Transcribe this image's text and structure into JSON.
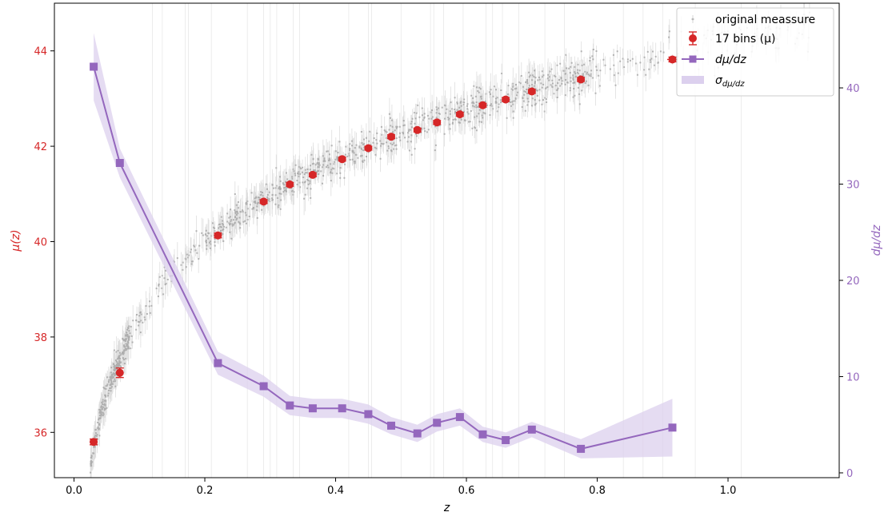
{
  "chart_data": {
    "type": "scatter",
    "title": "",
    "xlabel": "z",
    "ylabel_left": "μ(z)",
    "ylabel_right": "dμ/dz",
    "xlim": [
      -0.03,
      1.17
    ],
    "ylim_left": [
      35.05,
      45.0
    ],
    "ylim_right": [
      -0.5,
      48.8
    ],
    "x_ticks": [
      0.0,
      0.2,
      0.4,
      0.6,
      0.8,
      1.0
    ],
    "x_tick_labels": [
      "0.0",
      "0.2",
      "0.4",
      "0.6",
      "0.8",
      "1.0"
    ],
    "y_left_ticks": [
      36,
      38,
      40,
      42,
      44
    ],
    "y_left_tick_labels": [
      "36",
      "38",
      "40",
      "42",
      "44"
    ],
    "y_right_ticks": [
      0,
      10,
      20,
      30,
      40
    ],
    "y_right_tick_labels": [
      "0",
      "10",
      "20",
      "30",
      "40"
    ],
    "colors": {
      "mu": "#d62728",
      "deriv": "#9467bd",
      "band": "#dcd0ee",
      "raw": "#9a9a9a",
      "raw_err": "#d6d6d6"
    },
    "legend": [
      {
        "key": "raw",
        "label": "original meassure"
      },
      {
        "key": "bins",
        "label": "17 bins (μ)"
      },
      {
        "key": "deriv",
        "label": "dμ/dz"
      },
      {
        "key": "band",
        "label": "σ",
        "sub": "dμ/dz"
      }
    ],
    "legend_position": "top-right",
    "series": [
      {
        "name": "17 bins (μ)",
        "axis": "left",
        "x": [
          0.03,
          0.07,
          0.22,
          0.29,
          0.33,
          0.365,
          0.41,
          0.45,
          0.485,
          0.525,
          0.555,
          0.59,
          0.625,
          0.66,
          0.7,
          0.775,
          0.915
        ],
        "y": [
          35.8,
          37.25,
          40.13,
          40.84,
          41.2,
          41.4,
          41.73,
          41.96,
          42.2,
          42.34,
          42.5,
          42.67,
          42.86,
          42.98,
          43.15,
          43.4,
          43.82
        ],
        "yerr": [
          0.06,
          0.1,
          0.05,
          0.04,
          0.04,
          0.04,
          0.04,
          0.04,
          0.04,
          0.04,
          0.04,
          0.04,
          0.04,
          0.04,
          0.04,
          0.04,
          0.05
        ],
        "xerr": [
          0.006,
          0.003,
          0.006,
          0.006,
          0.004,
          0.004,
          0.006,
          0.006,
          0.004,
          0.004,
          0.004,
          0.004,
          0.004,
          0.004,
          0.004,
          0.004,
          0.008
        ]
      },
      {
        "name": "dμ/dz",
        "axis": "right",
        "x": [
          0.03,
          0.07,
          0.22,
          0.29,
          0.33,
          0.365,
          0.41,
          0.45,
          0.485,
          0.525,
          0.555,
          0.59,
          0.625,
          0.66,
          0.7,
          0.775,
          0.915
        ],
        "y": [
          42.2,
          32.2,
          11.4,
          9.0,
          7.0,
          6.7,
          6.7,
          6.1,
          4.9,
          4.1,
          5.2,
          5.8,
          4.0,
          3.4,
          4.5,
          2.5,
          4.7
        ],
        "sigma": [
          3.5,
          1.5,
          1.2,
          1.1,
          1.0,
          1.0,
          1.0,
          1.0,
          0.9,
          0.9,
          0.9,
          0.9,
          0.8,
          0.8,
          0.8,
          1.0,
          3.0
        ]
      }
    ]
  }
}
